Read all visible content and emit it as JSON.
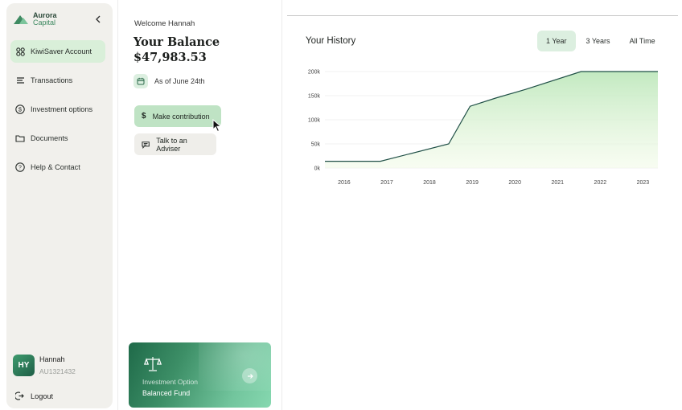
{
  "brand": {
    "line1": "Aurora",
    "line2": "Capital"
  },
  "sidebar": {
    "items": [
      {
        "label": "KiwiSaver Account",
        "icon": "grid-icon",
        "active": true
      },
      {
        "label": "Transactions",
        "icon": "list-icon",
        "active": false
      },
      {
        "label": "Investment options",
        "icon": "dollar-circle-icon",
        "active": false
      },
      {
        "label": "Documents",
        "icon": "folder-icon",
        "active": false
      },
      {
        "label": "Help & Contact",
        "icon": "help-circle-icon",
        "active": false
      }
    ],
    "user": {
      "initials": "HY",
      "name": "Hannah",
      "id": "AU1321432"
    },
    "logout_label": "Logout"
  },
  "overview": {
    "welcome": "Welcome Hannah",
    "balance_title": "Your Balance",
    "balance_value": "$47,983.53",
    "as_of": "As of June 24th",
    "primary_action": "Make contribution",
    "secondary_action": "Talk to an Adviser",
    "fund_card": {
      "label": "Investment Option",
      "name": "Balanced Fund"
    }
  },
  "history": {
    "title": "Your History",
    "ranges": [
      {
        "label": "1 Year",
        "active": true
      },
      {
        "label": "3 Years",
        "active": false
      },
      {
        "label": "All Time",
        "active": false
      }
    ]
  },
  "colors": {
    "accent": "#3f8a62",
    "line": "#1f4f46",
    "active_bg": "#dcefe0"
  },
  "chart_data": {
    "type": "area",
    "x": [
      2015.6,
      2016.9,
      2018.5,
      2019.0,
      2019.6,
      2020.3,
      2021.6,
      2023.4
    ],
    "values": [
      14000,
      14000,
      50000,
      128000,
      145000,
      163000,
      200000,
      200000
    ],
    "yticks": [
      "200k",
      "150k",
      "100k",
      "50k",
      "0k"
    ],
    "xticks": [
      "2016",
      "2017",
      "2018",
      "2019",
      "2020",
      "2021",
      "2022",
      "2023"
    ],
    "ylim": [
      0,
      200000
    ],
    "xlim": [
      2015.6,
      2023.4
    ],
    "grid": true
  }
}
